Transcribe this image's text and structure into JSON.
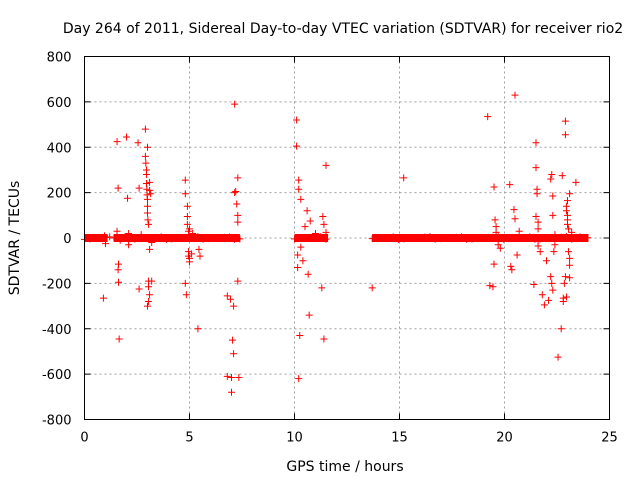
{
  "chart_data": {
    "type": "scatter",
    "title": "Day 264 of 2011, Sidereal Day-to-day VTEC variation (SDTVAR) for receiver rio2",
    "xlabel": "GPS time / hours",
    "ylabel": "SDTVAR / TECUs",
    "xlim": [
      0,
      25
    ],
    "ylim": [
      -800,
      800
    ],
    "x_ticks": [
      0,
      5,
      10,
      15,
      20,
      25
    ],
    "y_ticks": [
      -800,
      -600,
      -400,
      -200,
      0,
      200,
      400,
      600,
      800
    ],
    "grid": true,
    "marker": "+",
    "color": "#ff0000",
    "series": [
      {
        "name": "SDTVAR",
        "dense_bands": [
          [
            0.0,
            1.1
          ],
          [
            1.4,
            7.4
          ],
          [
            10.0,
            11.6
          ],
          [
            13.7,
            24.0
          ]
        ],
        "points": [
          [
            0.9,
            -265
          ],
          [
            0.95,
            10
          ],
          [
            1.0,
            -25
          ],
          [
            1.2,
            5
          ],
          [
            1.55,
            425
          ],
          [
            1.6,
            220
          ],
          [
            1.6,
            -140
          ],
          [
            1.62,
            -115
          ],
          [
            1.62,
            -195
          ],
          [
            1.65,
            -445
          ],
          [
            1.55,
            30
          ],
          [
            1.7,
            -10
          ],
          [
            2.0,
            445
          ],
          [
            2.05,
            175
          ],
          [
            2.1,
            -30
          ],
          [
            2.1,
            20
          ],
          [
            2.55,
            420
          ],
          [
            2.6,
            220
          ],
          [
            2.6,
            -225
          ],
          [
            2.7,
            15
          ],
          [
            2.9,
            480
          ],
          [
            2.9,
            360
          ],
          [
            2.92,
            330
          ],
          [
            2.95,
            300
          ],
          [
            2.95,
            280
          ],
          [
            2.95,
            240
          ],
          [
            2.97,
            215
          ],
          [
            2.98,
            190
          ],
          [
            3.0,
            400
          ],
          [
            3.0,
            170
          ],
          [
            3.0,
            140
          ],
          [
            3.0,
            110
          ],
          [
            3.02,
            80
          ],
          [
            3.05,
            60
          ],
          [
            3.05,
            -190
          ],
          [
            3.05,
            -215
          ],
          [
            3.1,
            -250
          ],
          [
            3.0,
            -300
          ],
          [
            3.05,
            -280
          ],
          [
            3.1,
            245
          ],
          [
            3.1,
            210
          ],
          [
            3.1,
            -50
          ],
          [
            3.15,
            195
          ],
          [
            3.2,
            -20
          ],
          [
            3.2,
            -190
          ],
          [
            4.8,
            255
          ],
          [
            4.8,
            195
          ],
          [
            4.8,
            -200
          ],
          [
            4.85,
            -250
          ],
          [
            4.9,
            140
          ],
          [
            4.9,
            95
          ],
          [
            4.9,
            60
          ],
          [
            4.95,
            30
          ],
          [
            4.95,
            -60
          ],
          [
            4.95,
            -80
          ],
          [
            5.0,
            -90
          ],
          [
            5.0,
            -105
          ],
          [
            5.0,
            40
          ],
          [
            5.1,
            -70
          ],
          [
            5.15,
            20
          ],
          [
            5.4,
            -400
          ],
          [
            5.45,
            -50
          ],
          [
            5.5,
            -80
          ],
          [
            6.8,
            -610
          ],
          [
            6.8,
            -255
          ],
          [
            6.95,
            -270
          ],
          [
            7.0,
            -615
          ],
          [
            7.0,
            -680
          ],
          [
            7.05,
            -450
          ],
          [
            7.1,
            -510
          ],
          [
            7.1,
            -300
          ],
          [
            7.15,
            590
          ],
          [
            7.15,
            200
          ],
          [
            7.2,
            205
          ],
          [
            7.25,
            150
          ],
          [
            7.3,
            265
          ],
          [
            7.3,
            -190
          ],
          [
            7.35,
            -615
          ],
          [
            7.3,
            100
          ],
          [
            7.3,
            70
          ],
          [
            10.1,
            520
          ],
          [
            10.1,
            405
          ],
          [
            10.15,
            -75
          ],
          [
            10.15,
            -130
          ],
          [
            10.2,
            255
          ],
          [
            10.2,
            215
          ],
          [
            10.2,
            -620
          ],
          [
            10.25,
            -430
          ],
          [
            10.3,
            170
          ],
          [
            10.3,
            -40
          ],
          [
            10.4,
            -100
          ],
          [
            10.5,
            50
          ],
          [
            10.6,
            120
          ],
          [
            10.7,
            -340
          ],
          [
            10.75,
            75
          ],
          [
            10.65,
            -160
          ],
          [
            11.0,
            20
          ],
          [
            11.3,
            -220
          ],
          [
            11.35,
            95
          ],
          [
            11.4,
            -445
          ],
          [
            11.5,
            320
          ],
          [
            11.4,
            60
          ],
          [
            11.5,
            25
          ],
          [
            13.7,
            -220
          ],
          [
            15.2,
            265
          ],
          [
            19.2,
            535
          ],
          [
            19.3,
            -210
          ],
          [
            19.45,
            -215
          ],
          [
            19.5,
            -115
          ],
          [
            19.5,
            225
          ],
          [
            19.55,
            80
          ],
          [
            19.6,
            50
          ],
          [
            19.6,
            25
          ],
          [
            19.7,
            -30
          ],
          [
            19.8,
            -45
          ],
          [
            20.25,
            235
          ],
          [
            20.3,
            -125
          ],
          [
            20.35,
            -140
          ],
          [
            20.45,
            125
          ],
          [
            20.5,
            85
          ],
          [
            20.5,
            630
          ],
          [
            20.6,
            -75
          ],
          [
            20.7,
            30
          ],
          [
            21.4,
            -205
          ],
          [
            21.5,
            420
          ],
          [
            21.5,
            310
          ],
          [
            21.55,
            215
          ],
          [
            21.55,
            195
          ],
          [
            21.5,
            95
          ],
          [
            21.6,
            70
          ],
          [
            21.6,
            40
          ],
          [
            21.6,
            -10
          ],
          [
            21.6,
            -35
          ],
          [
            21.7,
            -60
          ],
          [
            21.8,
            -250
          ],
          [
            21.9,
            -295
          ],
          [
            22.0,
            -100
          ],
          [
            22.1,
            -275
          ],
          [
            22.2,
            260
          ],
          [
            22.25,
            280
          ],
          [
            22.3,
            185
          ],
          [
            22.3,
            100
          ],
          [
            22.35,
            -60
          ],
          [
            22.4,
            -30
          ],
          [
            22.4,
            15
          ],
          [
            22.2,
            -170
          ],
          [
            22.25,
            -200
          ],
          [
            22.3,
            -230
          ],
          [
            22.55,
            -525
          ],
          [
            22.7,
            -400
          ],
          [
            22.75,
            275
          ],
          [
            22.8,
            -280
          ],
          [
            22.8,
            -265
          ],
          [
            22.85,
            -200
          ],
          [
            22.9,
            -170
          ],
          [
            22.9,
            515
          ],
          [
            22.9,
            455
          ],
          [
            22.95,
            140
          ],
          [
            22.95,
            120
          ],
          [
            23.0,
            100
          ],
          [
            23.0,
            80
          ],
          [
            23.0,
            60
          ],
          [
            23.05,
            40
          ],
          [
            23.05,
            -60
          ],
          [
            23.1,
            195
          ],
          [
            23.1,
            -175
          ],
          [
            23.1,
            -120
          ],
          [
            23.1,
            -90
          ],
          [
            23.0,
            165
          ],
          [
            22.95,
            -260
          ],
          [
            23.2,
            25
          ],
          [
            23.4,
            245
          ],
          [
            23.6,
            5
          ]
        ]
      }
    ]
  }
}
